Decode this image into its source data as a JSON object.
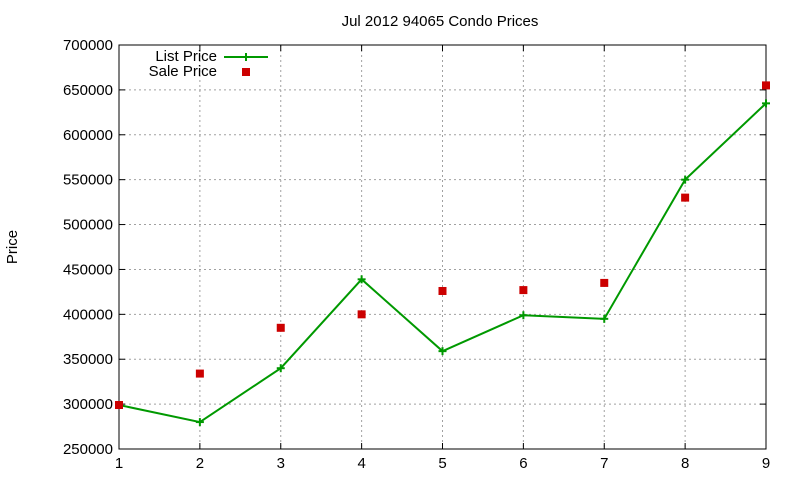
{
  "chart_data": {
    "type": "line",
    "title": "Jul 2012 94065 Condo Prices",
    "xlabel": "",
    "ylabel": "Price",
    "x": [
      1,
      2,
      3,
      4,
      5,
      6,
      7,
      8,
      9
    ],
    "xlim": [
      1,
      9
    ],
    "ylim": [
      250000,
      700000
    ],
    "xticks": [
      "1",
      "2",
      "3",
      "4",
      "5",
      "6",
      "7",
      "8",
      "9"
    ],
    "yticks": [
      "250000",
      "300000",
      "350000",
      "400000",
      "450000",
      "500000",
      "550000",
      "600000",
      "650000",
      "700000"
    ],
    "grid": true,
    "legend_position": "top-left",
    "series": [
      {
        "name": "List Price",
        "style": "line-with-plus-markers",
        "color": "#009900",
        "values": [
          299000,
          280000,
          340000,
          439000,
          359000,
          399000,
          395000,
          550000,
          635000
        ]
      },
      {
        "name": "Sale Price",
        "style": "square-markers",
        "color": "#cc0000",
        "values": [
          299000,
          334000,
          385000,
          400000,
          426000,
          427000,
          435000,
          530000,
          655000
        ]
      }
    ]
  }
}
